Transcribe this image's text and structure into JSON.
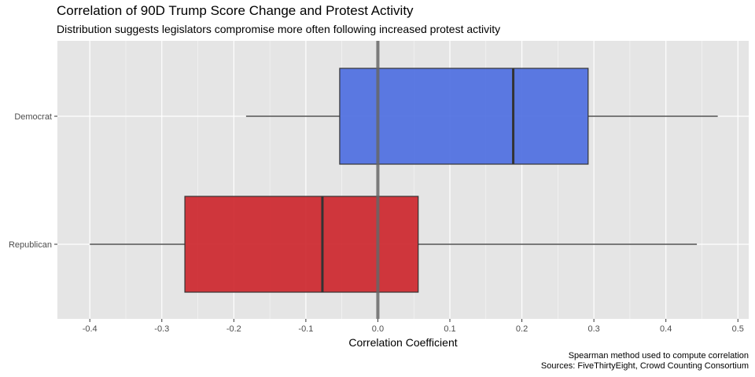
{
  "title": "Correlation of 90D Trump Score Change and Protest Activity",
  "subtitle": "Distribution suggests legislators compromise more often following increased protest activity",
  "caption": {
    "line1": "Spearman method used to compute correlation",
    "line2": "Sources: FiveThirtyEight, Crowd Counting Consortium"
  },
  "chart_data": {
    "type": "boxplot",
    "orientation": "horizontal",
    "xlabel": "Correlation Coefficient",
    "ylabel": "",
    "xlim": [
      -0.445,
      0.515
    ],
    "x_ticks": [
      -0.4,
      -0.3,
      -0.2,
      -0.1,
      0.0,
      0.1,
      0.2,
      0.3,
      0.4,
      0.5
    ],
    "x_tick_labels": [
      "-0.4",
      "-0.3",
      "-0.2",
      "-0.1",
      "0.0",
      "0.1",
      "0.2",
      "0.3",
      "0.4",
      "0.5"
    ],
    "categories": [
      "Democrat",
      "Republican"
    ],
    "reference_line": {
      "x": 0.0,
      "color": "#666666"
    },
    "grid": true,
    "legend": "none",
    "series": [
      {
        "category": "Democrat",
        "min": -0.183,
        "q1": -0.053,
        "median": 0.188,
        "q3": 0.292,
        "max": 0.472,
        "fill": "#4A6BE0"
      },
      {
        "category": "Republican",
        "min": -0.4,
        "q1": -0.268,
        "median": -0.077,
        "q3": 0.056,
        "max": 0.443,
        "fill": "#CC2229"
      }
    ],
    "colors": {
      "panel": "#E5E5E5",
      "grid": "#FFFFFF",
      "box_outline": "#333333"
    }
  }
}
